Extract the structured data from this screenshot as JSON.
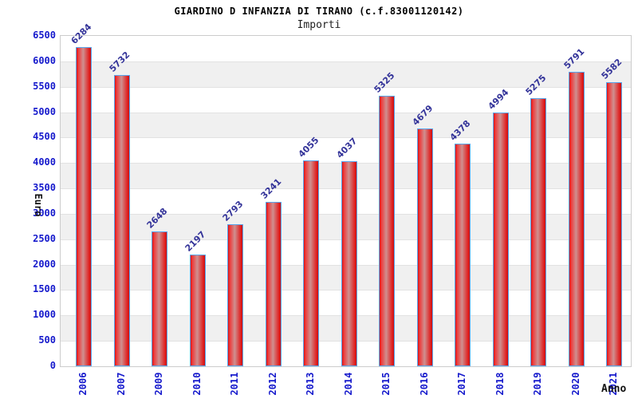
{
  "header": {
    "title": "GIARDINO D INFANZIA DI TIRANO (c.f.83001120142)",
    "subtitle": "Importi"
  },
  "chart_data": {
    "type": "bar",
    "title": "GIARDINO D INFANZIA DI TIRANO (c.f.83001120142)",
    "subtitle": "Importi",
    "xlabel": "Anno",
    "ylabel": "Euro",
    "categories": [
      "2006",
      "2007",
      "2009",
      "2010",
      "2011",
      "2012",
      "2013",
      "2014",
      "2015",
      "2016",
      "2017",
      "2018",
      "2019",
      "2020",
      "2021"
    ],
    "values": [
      6284,
      5732,
      2648,
      2197,
      2793,
      3241,
      4055,
      4037,
      5325,
      4679,
      4378,
      4994,
      5275,
      5791,
      5582
    ],
    "yticks": [
      0,
      500,
      1000,
      1500,
      2000,
      2500,
      3000,
      3500,
      4000,
      4500,
      5000,
      5500,
      6000,
      6500
    ],
    "ylim": [
      0,
      6500
    ],
    "grid": "horizontal-bands-alternating",
    "legend": "none",
    "value_labels": "above-bars-rotated-45",
    "x_labels_rotation": -90,
    "colors": {
      "bar_edge": "#dd1212",
      "bar_center": "#cf9090",
      "bar_border": "#58a6ee",
      "band_alt": "#f0f0f0",
      "band_main": "#ffffff",
      "grid_line": "#e2e2e2",
      "plot_border": "#cccccc",
      "tick_label": "#1519cc",
      "value_label": "#333399",
      "title": "#000000",
      "axis_title": "#111111"
    }
  }
}
